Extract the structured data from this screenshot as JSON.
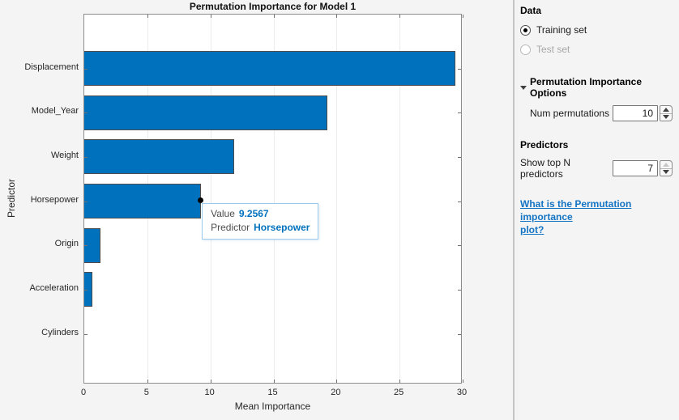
{
  "chart_data": {
    "type": "bar",
    "orientation": "horizontal",
    "title": "Permutation Importance for Model 1",
    "xlabel": "Mean Importance",
    "ylabel": "Predictor",
    "categories": [
      "Displacement",
      "Model_Year",
      "Weight",
      "Horsepower",
      "Origin",
      "Acceleration",
      "Cylinders"
    ],
    "values": [
      29.45,
      19.25,
      11.9,
      9.2567,
      1.3,
      0.65,
      0
    ],
    "xlim": [
      0,
      30
    ],
    "xticks": [
      0,
      5,
      10,
      15,
      20,
      25,
      30
    ],
    "grid": true,
    "legend": "none",
    "bar_color": "#0072BD"
  },
  "tooltip": {
    "selected_index": 3,
    "value_label": "Value",
    "value": "9.2567",
    "predictor_label": "Predictor",
    "predictor": "Horsepower"
  },
  "panel": {
    "data_header": "Data",
    "radio_training": "Training set",
    "radio_test": "Test set",
    "options_header": "Permutation Importance Options",
    "num_permutations_label": "Num permutations",
    "num_permutations_value": "10",
    "predictors_header": "Predictors",
    "show_top_label": "Show top N predictors",
    "show_top_value": "7",
    "help_link_line1": "What is the Permutation importance",
    "help_link_line2": "plot?"
  },
  "colors": {
    "bar": "#0072BD",
    "datatip_value": "#0072BD",
    "datatip_border": "#9ccaed",
    "link": "#1474c4",
    "background": "#f4f4f4"
  }
}
